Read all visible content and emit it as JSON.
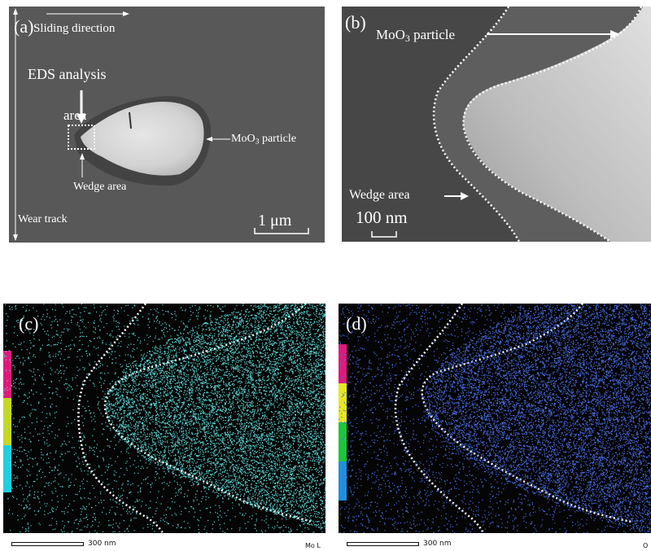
{
  "panel_a": {
    "tag": "(a)",
    "sliding_direction": "Sliding direction",
    "eds_line1": "EDS analysis",
    "eds_line2": "area",
    "particle": "MoO",
    "particle_sub": "3",
    "particle_tail": " particle",
    "wedge": "Wedge area",
    "wear_track": "Wear track",
    "scale": "1 μm"
  },
  "panel_b": {
    "tag": "(b)",
    "particle": "MoO",
    "particle_sub": "3",
    "particle_tail": " particle",
    "wedge": "Wedge area",
    "scale": "100 nm"
  },
  "panel_c": {
    "tag": "(c)",
    "scale": "300 nm",
    "channel": "Mo L",
    "dot_color": "#5fd8d8"
  },
  "panel_d": {
    "tag": "(d)",
    "scale": "300 nm",
    "channel": "O",
    "dot_color": "#4a6fe8"
  }
}
